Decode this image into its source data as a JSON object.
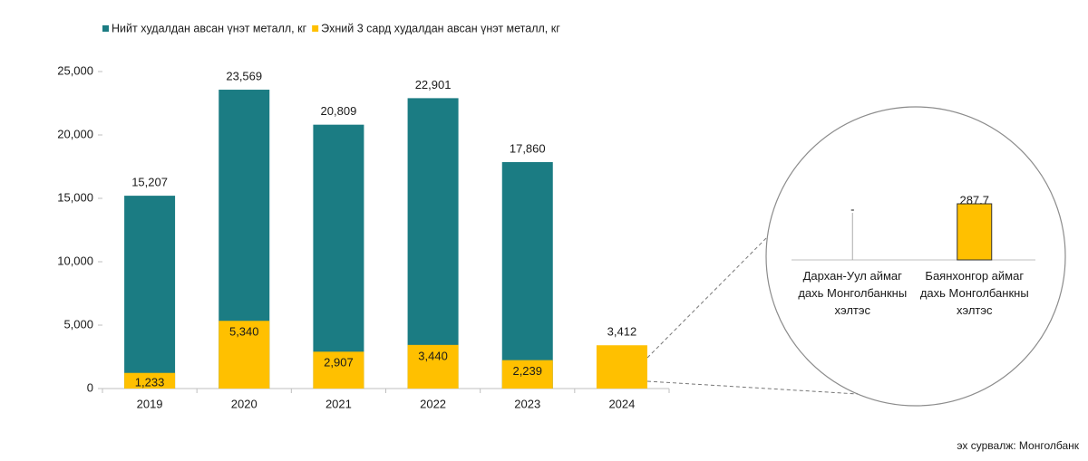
{
  "chart_data": [
    {
      "type": "bar",
      "categories": [
        "2019",
        "2020",
        "2021",
        "2022",
        "2023",
        "2024"
      ],
      "series": [
        {
          "name": "Нийт худалдан авсан үнэт металл, кг",
          "color": "#1B7C83",
          "values": [
            15207,
            23569,
            20809,
            22901,
            17860,
            null
          ],
          "value_labels": [
            "15,207",
            "23,569",
            "20,809",
            "22,901",
            "17,860",
            null
          ]
        },
        {
          "name": "Эхний 3 сард худалдан авсан үнэт металл, кг",
          "color": "#FFC000",
          "values": [
            1233,
            5340,
            2907,
            3440,
            2239,
            3412
          ],
          "value_labels": [
            "1,233",
            "5,340",
            "2,907",
            "3,440",
            "2,239",
            "3,412"
          ]
        }
      ],
      "ylim": [
        0,
        25000
      ],
      "yticks": [
        0,
        {
          "value": 5000,
          "label": "5,000"
        },
        {
          "value": 10000,
          "label": "10,000"
        },
        {
          "value": 15000,
          "label": "15,000"
        },
        {
          "value": 20000,
          "label": "20,000"
        },
        {
          "value": 25000,
          "label": "25,000"
        }
      ],
      "overlap": true,
      "legend": "top-left",
      "source": "эх сурвалж: Монголбанк"
    },
    {
      "type": "bar",
      "categories": [
        "Дархан-Уул аймаг дахь Монголбанкны хэлтэс",
        "Баянхонгор аймаг дахь Монголбанкны хэлтэс"
      ],
      "values": [
        0,
        287.7
      ],
      "value_labels": [
        "-",
        "287.7"
      ],
      "color": "#FFC000"
    }
  ]
}
